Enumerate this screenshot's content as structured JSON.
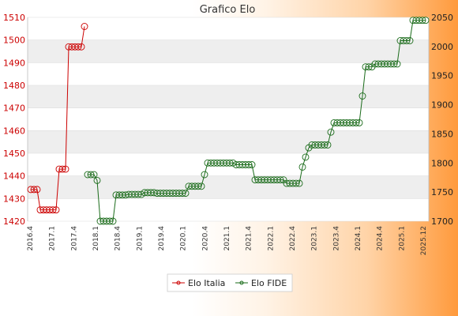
{
  "chart_data": {
    "type": "line",
    "title": "Grafico Elo",
    "y_left": {
      "ylim": [
        1420,
        1510
      ],
      "ticks": [
        1420,
        1430,
        1440,
        1450,
        1460,
        1470,
        1480,
        1490,
        1500,
        1510
      ],
      "color": "#cc0000"
    },
    "y_right": {
      "ylim": [
        1700,
        2050
      ],
      "ticks": [
        1700,
        1750,
        1800,
        1850,
        1900,
        1950,
        2000,
        2050
      ]
    },
    "x_tick_labels": [
      "2016.4",
      "2017.1",
      "2017.4",
      "2018.1",
      "2018.4",
      "2019.1",
      "2019.4",
      "2020.1",
      "2020.4",
      "2021.1",
      "2021.4",
      "2022.1",
      "2022.4",
      "2023.1",
      "2023.4",
      "2024.1",
      "2024.4",
      "2025.1",
      "2025.12"
    ],
    "series": [
      {
        "name": "Elo Italia",
        "axis": "left",
        "color": "#cc0000",
        "values": [
          1434,
          1434,
          1434,
          1425,
          1425,
          1425,
          1425,
          1425,
          1425,
          1443,
          1443,
          1443,
          1497,
          1497,
          1497,
          1497,
          1497,
          1506
        ]
      },
      {
        "name": "Elo FIDE",
        "axis": "right",
        "color": "#1a6b1a",
        "values": [
          null,
          null,
          null,
          null,
          null,
          null,
          null,
          null,
          null,
          null,
          null,
          null,
          null,
          null,
          null,
          null,
          null,
          null,
          1780,
          1780,
          1780,
          1770,
          1700,
          1700,
          1700,
          1700,
          1700,
          1745,
          1745,
          1745,
          1745,
          1746,
          1746,
          1746,
          1746,
          1746,
          1749,
          1749,
          1749,
          1749,
          1748,
          1748,
          1748,
          1748,
          1748,
          1748,
          1748,
          1748,
          1748,
          1748,
          1760,
          1760,
          1760,
          1760,
          1760,
          1780,
          1800,
          1800,
          1800,
          1800,
          1800,
          1800,
          1800,
          1800,
          1800,
          1797,
          1797,
          1797,
          1797,
          1797,
          1797,
          1771,
          1771,
          1771,
          1771,
          1771,
          1771,
          1771,
          1771,
          1771,
          1771,
          1765,
          1765,
          1765,
          1765,
          1765,
          1793,
          1810,
          1826,
          1831,
          1831,
          1831,
          1831,
          1831,
          1831,
          1853,
          1869,
          1869,
          1869,
          1869,
          1869,
          1869,
          1869,
          1869,
          1869,
          1915,
          1965,
          1965,
          1965,
          1970,
          1970,
          1970,
          1970,
          1970,
          1970,
          1970,
          1970,
          2010,
          2010,
          2010,
          2010,
          2045,
          2045,
          2045,
          2045,
          2045
        ]
      }
    ],
    "legend": {
      "placement": "bottom",
      "entries": [
        "Elo Italia",
        "Elo FIDE"
      ]
    },
    "grid": true
  }
}
